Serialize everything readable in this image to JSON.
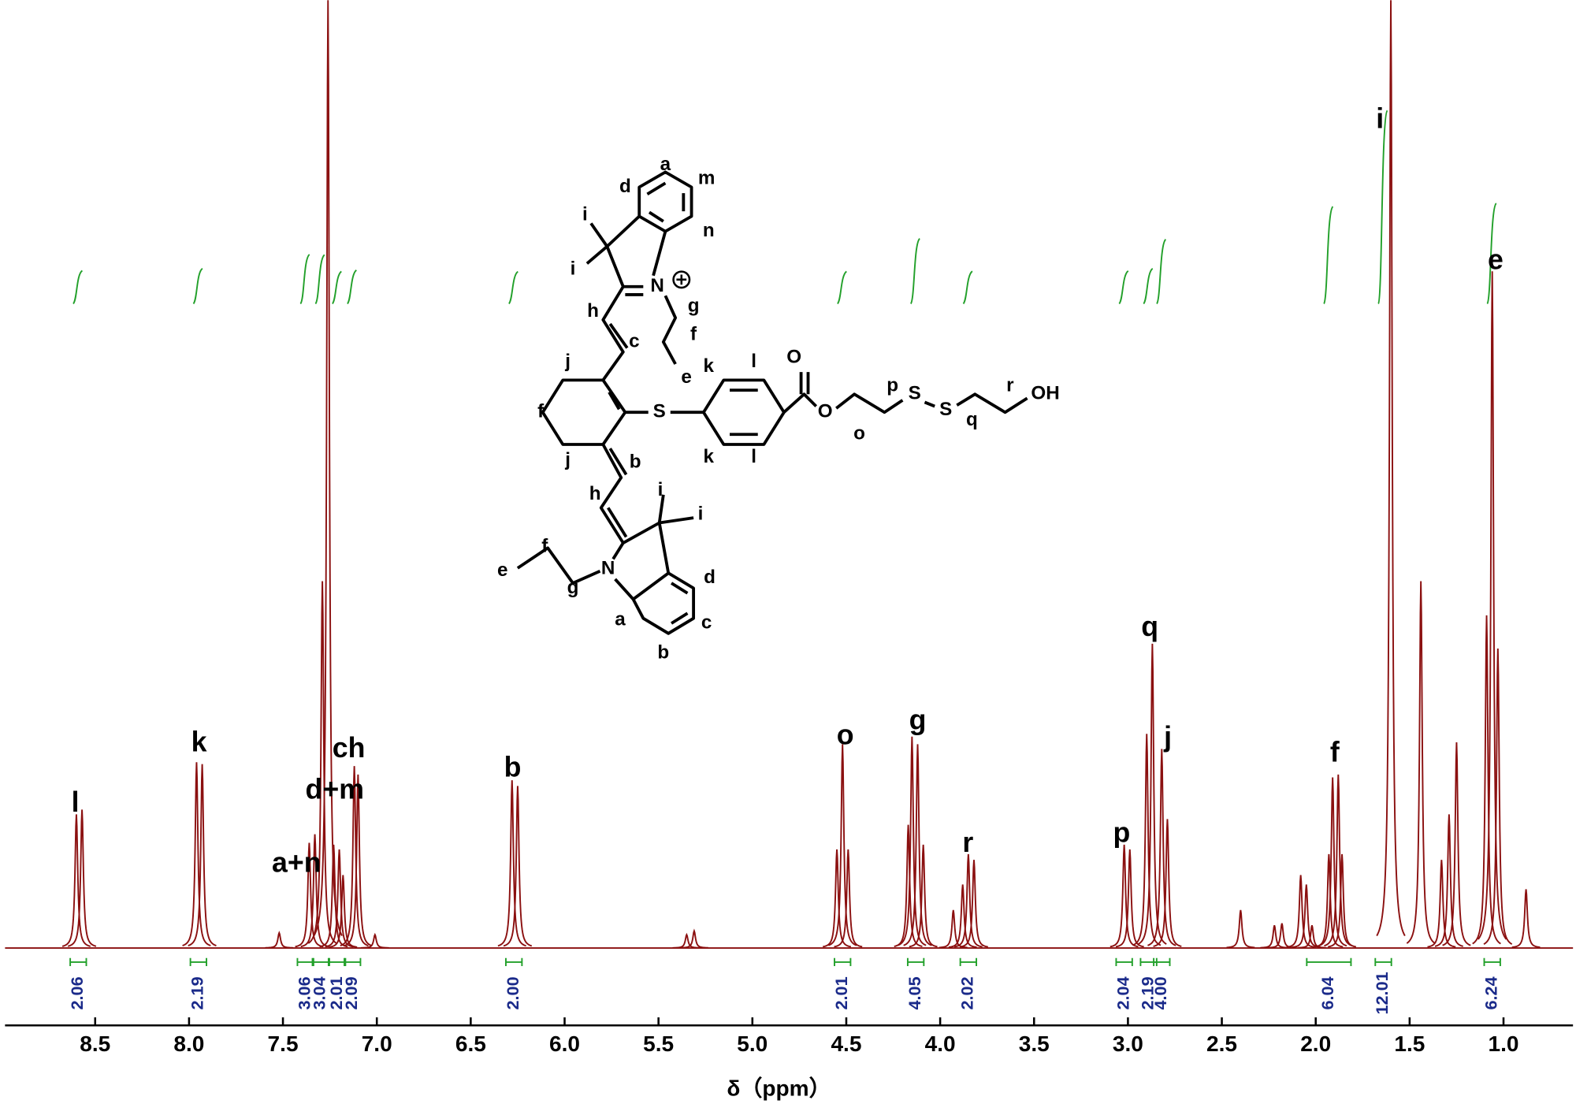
{
  "chart_data": {
    "type": "nmr",
    "xlabel": "δ（ppm）",
    "xlim": [
      8.98,
      0.63
    ],
    "xticks": [
      8.5,
      {
        "value": 8,
        "label": "8.0"
      },
      7.5,
      {
        "value": 7,
        "label": "7.0"
      },
      6.5,
      {
        "value": 6,
        "label": "6.0"
      },
      5.5,
      {
        "value": 5,
        "label": "5.0"
      },
      4.5,
      {
        "value": 4,
        "label": "4.0"
      },
      3.5,
      {
        "value": 3,
        "label": "3.0"
      },
      2.5,
      {
        "value": 2,
        "label": "2.0"
      },
      1.5,
      {
        "value": 1,
        "label": "1.0"
      }
    ],
    "ylim": [
      0,
      100
    ],
    "color": "#8b1010",
    "integral_color": "#22a02a",
    "integral_label_color": "#1a2a8a",
    "peaks": {
      "x": [
        8.6,
        8.57,
        7.96,
        7.93,
        7.52,
        7.36,
        7.33,
        7.29,
        7.26,
        7.23,
        7.2,
        7.18,
        7.12,
        7.1,
        7.01,
        6.28,
        6.25,
        5.35,
        5.31,
        4.55,
        4.52,
        4.49,
        4.17,
        4.15,
        4.12,
        4.09,
        3.93,
        3.88,
        3.85,
        3.82,
        3.02,
        2.99,
        2.9,
        2.87,
        2.82,
        2.79,
        2.4,
        2.22,
        2.18,
        2.08,
        2.05,
        2.02,
        1.93,
        1.91,
        1.88,
        1.86,
        1.6,
        1.44,
        1.33,
        1.29,
        1.25,
        1.09,
        1.06,
        1.03,
        0.88
      ],
      "values": [
        14.1,
        14.6,
        19.6,
        19.4,
        1.6,
        11.1,
        12.0,
        38.7,
        100,
        10.9,
        10.4,
        7.7,
        19.2,
        18.3,
        1.4,
        17.7,
        17.1,
        1.4,
        1.8,
        10.4,
        21.5,
        10.4,
        13.0,
        22.3,
        21.5,
        10.9,
        4.0,
        6.7,
        9.9,
        9.3,
        10.9,
        10.4,
        22.6,
        32.1,
        21.0,
        13.6,
        4.0,
        2.4,
        2.6,
        7.7,
        6.7,
        2.4,
        9.9,
        18.0,
        18.3,
        9.9,
        100,
        38.7,
        9.3,
        14.1,
        21.7,
        35.1,
        71.4,
        31.6,
        6.2
      ]
    },
    "peak_labels": [
      "l",
      "k",
      "a+n",
      "d+m",
      "ch",
      "b",
      "o",
      "g",
      "r",
      "p",
      "q",
      "j",
      "f",
      "i",
      "e"
    ],
    "integrals": {
      "x": [
        8.59,
        7.95,
        7.38,
        7.3,
        7.21,
        7.13,
        6.27,
        4.52,
        4.13,
        3.85,
        3.02,
        2.89,
        2.82,
        1.93,
        1.64,
        1.06
      ],
      "values": [
        2.06,
        2.19,
        3.06,
        3.04,
        2.01,
        2.09,
        2,
        2.01,
        4.05,
        2.02,
        2.04,
        2.19,
        4,
        6.04,
        12.01,
        6.24
      ],
      "value_labels": [
        "2.06",
        "2.19",
        "3.06",
        "3.04",
        "2.01",
        "2.09",
        "2.00",
        "2.01",
        "4.05",
        "2.02",
        "2.04",
        "2.19",
        "4.00",
        "6.04",
        "12.01",
        "6.24"
      ]
    }
  },
  "structure": {
    "labels": [
      "d",
      "a",
      "m",
      "n",
      "i",
      "i",
      "N",
      "h",
      "g",
      "f",
      "e",
      "c",
      "j",
      "f",
      "j",
      "S",
      "k",
      "l",
      "k",
      "l",
      "O",
      "O",
      "o",
      "p",
      "S",
      "S",
      "q",
      "r",
      "OH",
      "b",
      "h",
      "i",
      "i",
      "N",
      "e",
      "f",
      "g",
      "d",
      "c",
      "b",
      "a"
    ]
  }
}
